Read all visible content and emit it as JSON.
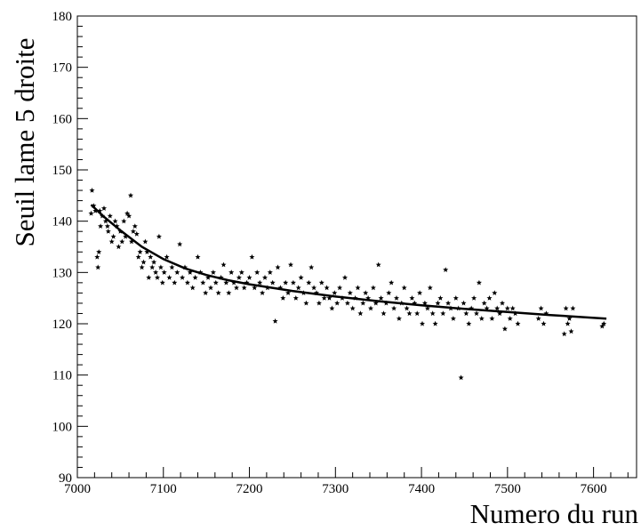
{
  "chart_data": {
    "type": "scatter",
    "title": "",
    "xlabel": "Numero du run",
    "ylabel": "Seuil lame 5 droite",
    "xlim": [
      7000,
      7650
    ],
    "ylim": [
      90,
      180
    ],
    "x_ticks": [
      7000,
      7100,
      7200,
      7300,
      7400,
      7500,
      7600
    ],
    "y_ticks": [
      90,
      100,
      110,
      120,
      130,
      140,
      150,
      160,
      170,
      180
    ],
    "grid": false,
    "legend": "none",
    "marker": "star",
    "color": "#000000",
    "series": [
      {
        "type": "scatter",
        "points": [
          [
            7016,
            141.5
          ],
          [
            7017,
            146
          ],
          [
            7019,
            143
          ],
          [
            7021,
            142
          ],
          [
            7023,
            133
          ],
          [
            7024,
            131
          ],
          [
            7025,
            134
          ],
          [
            7026,
            142
          ],
          [
            7027,
            139
          ],
          [
            7029,
            141
          ],
          [
            7031,
            142.5
          ],
          [
            7033,
            140
          ],
          [
            7035,
            139
          ],
          [
            7036,
            138
          ],
          [
            7038,
            141
          ],
          [
            7040,
            136
          ],
          [
            7042,
            137
          ],
          [
            7044,
            140
          ],
          [
            7046,
            139
          ],
          [
            7048,
            135
          ],
          [
            7050,
            138
          ],
          [
            7052,
            136
          ],
          [
            7054,
            140
          ],
          [
            7056,
            137
          ],
          [
            7058,
            141.5
          ],
          [
            7060,
            141
          ],
          [
            7062,
            145
          ],
          [
            7063,
            136
          ],
          [
            7065,
            138
          ],
          [
            7067,
            139
          ],
          [
            7069,
            137.5
          ],
          [
            7071,
            133
          ],
          [
            7073,
            134
          ],
          [
            7075,
            131
          ],
          [
            7077,
            132
          ],
          [
            7079,
            136
          ],
          [
            7081,
            134
          ],
          [
            7083,
            129
          ],
          [
            7085,
            133
          ],
          [
            7087,
            131
          ],
          [
            7089,
            132
          ],
          [
            7091,
            130
          ],
          [
            7093,
            129
          ],
          [
            7095,
            137
          ],
          [
            7097,
            131
          ],
          [
            7099,
            128
          ],
          [
            7101,
            130
          ],
          [
            7104,
            133
          ],
          [
            7107,
            129
          ],
          [
            7110,
            131
          ],
          [
            7113,
            128
          ],
          [
            7116,
            130
          ],
          [
            7119,
            135.5
          ],
          [
            7122,
            129
          ],
          [
            7125,
            131
          ],
          [
            7128,
            128
          ],
          [
            7131,
            130
          ],
          [
            7134,
            127
          ],
          [
            7137,
            129
          ],
          [
            7140,
            133
          ],
          [
            7143,
            130
          ],
          [
            7146,
            128
          ],
          [
            7149,
            126
          ],
          [
            7152,
            129
          ],
          [
            7155,
            127
          ],
          [
            7158,
            130
          ],
          [
            7161,
            128
          ],
          [
            7164,
            126
          ],
          [
            7167,
            129
          ],
          [
            7170,
            131.5
          ],
          [
            7173,
            128
          ],
          [
            7176,
            126
          ],
          [
            7179,
            130
          ],
          [
            7182,
            128
          ],
          [
            7185,
            127
          ],
          [
            7188,
            129
          ],
          [
            7191,
            130
          ],
          [
            7194,
            127
          ],
          [
            7197,
            128
          ],
          [
            7200,
            129
          ],
          [
            7203,
            133
          ],
          [
            7206,
            127
          ],
          [
            7209,
            130
          ],
          [
            7212,
            128
          ],
          [
            7215,
            126
          ],
          [
            7218,
            129
          ],
          [
            7221,
            127
          ],
          [
            7224,
            130
          ],
          [
            7227,
            128
          ],
          [
            7230,
            120.5
          ],
          [
            7233,
            131
          ],
          [
            7236,
            127
          ],
          [
            7239,
            125
          ],
          [
            7242,
            128
          ],
          [
            7245,
            126
          ],
          [
            7248,
            131.5
          ],
          [
            7251,
            128
          ],
          [
            7254,
            125
          ],
          [
            7257,
            127
          ],
          [
            7260,
            129
          ],
          [
            7263,
            126
          ],
          [
            7266,
            124
          ],
          [
            7269,
            128
          ],
          [
            7272,
            131
          ],
          [
            7275,
            127
          ],
          [
            7278,
            126
          ],
          [
            7281,
            124
          ],
          [
            7284,
            128
          ],
          [
            7287,
            125
          ],
          [
            7290,
            127
          ],
          [
            7293,
            125
          ],
          [
            7296,
            123
          ],
          [
            7299,
            126
          ],
          [
            7302,
            124
          ],
          [
            7305,
            127
          ],
          [
            7308,
            125
          ],
          [
            7311,
            129
          ],
          [
            7314,
            124
          ],
          [
            7317,
            126
          ],
          [
            7320,
            123
          ],
          [
            7323,
            125
          ],
          [
            7326,
            127
          ],
          [
            7329,
            122
          ],
          [
            7332,
            124
          ],
          [
            7335,
            126
          ],
          [
            7338,
            125
          ],
          [
            7341,
            123
          ],
          [
            7344,
            127
          ],
          [
            7347,
            124
          ],
          [
            7350,
            131.5
          ],
          [
            7353,
            125
          ],
          [
            7356,
            122
          ],
          [
            7359,
            124
          ],
          [
            7362,
            126
          ],
          [
            7365,
            128
          ],
          [
            7368,
            123
          ],
          [
            7371,
            125
          ],
          [
            7374,
            121
          ],
          [
            7377,
            124
          ],
          [
            7380,
            127
          ],
          [
            7383,
            123
          ],
          [
            7386,
            122
          ],
          [
            7389,
            125
          ],
          [
            7392,
            124
          ],
          [
            7395,
            122
          ],
          [
            7398,
            126
          ],
          [
            7401,
            120
          ],
          [
            7404,
            124
          ],
          [
            7407,
            123
          ],
          [
            7410,
            127
          ],
          [
            7413,
            122
          ],
          [
            7416,
            120
          ],
          [
            7419,
            124
          ],
          [
            7422,
            125
          ],
          [
            7425,
            122
          ],
          [
            7428,
            130.5
          ],
          [
            7431,
            124
          ],
          [
            7434,
            123
          ],
          [
            7437,
            121
          ],
          [
            7440,
            125
          ],
          [
            7443,
            123
          ],
          [
            7446,
            109.5
          ],
          [
            7449,
            124
          ],
          [
            7452,
            122
          ],
          [
            7455,
            120
          ],
          [
            7458,
            123
          ],
          [
            7461,
            125
          ],
          [
            7464,
            122
          ],
          [
            7467,
            128
          ],
          [
            7470,
            121
          ],
          [
            7473,
            124
          ],
          [
            7476,
            123
          ],
          [
            7479,
            125
          ],
          [
            7482,
            121
          ],
          [
            7485,
            126
          ],
          [
            7488,
            123
          ],
          [
            7491,
            122
          ],
          [
            7494,
            124
          ],
          [
            7497,
            119
          ],
          [
            7500,
            123
          ],
          [
            7503,
            121
          ],
          [
            7506,
            123
          ],
          [
            7509,
            122
          ],
          [
            7512,
            120
          ],
          [
            7536,
            121
          ],
          [
            7539,
            123
          ],
          [
            7542,
            120
          ],
          [
            7545,
            122
          ],
          [
            7566,
            118
          ],
          [
            7568,
            123
          ],
          [
            7570,
            120
          ],
          [
            7572,
            121
          ],
          [
            7574,
            118.5
          ],
          [
            7576,
            123
          ],
          [
            7610,
            119.5
          ],
          [
            7612,
            120
          ]
        ]
      },
      {
        "type": "line",
        "name": "",
        "points": [
          [
            7016,
            143.2
          ],
          [
            7030,
            141
          ],
          [
            7050,
            138.2
          ],
          [
            7075,
            135
          ],
          [
            7100,
            132.6
          ],
          [
            7125,
            130.8
          ],
          [
            7150,
            129.5
          ],
          [
            7175,
            128.5
          ],
          [
            7200,
            127.7
          ],
          [
            7250,
            126.4
          ],
          [
            7300,
            125.3
          ],
          [
            7350,
            124.4
          ],
          [
            7400,
            123.6
          ],
          [
            7450,
            122.9
          ],
          [
            7500,
            122.3
          ],
          [
            7550,
            121.7
          ],
          [
            7615,
            121
          ]
        ]
      }
    ]
  }
}
